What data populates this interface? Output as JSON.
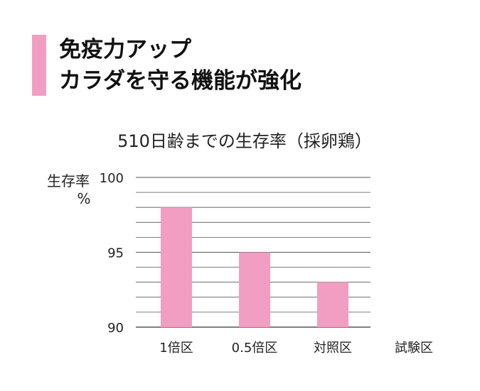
{
  "heading": {
    "accent_color": "#f19ec2",
    "line1": "免疫力アップ",
    "line2": "カラダを守る機能が強化"
  },
  "chart_data": {
    "type": "bar",
    "title": "510日齢までの生存率（採卵鶏）",
    "ylabel_line1": "生存率",
    "ylabel_line2": "%",
    "xlabel": "試験区",
    "categories": [
      "1倍区",
      "0.5倍区",
      "対照区"
    ],
    "values": [
      98,
      95,
      93
    ],
    "ylim": [
      90,
      100
    ],
    "yticks": [
      90,
      95,
      100
    ],
    "ytick_labels": [
      "90",
      "95",
      "100"
    ],
    "grid_step": 1,
    "grid": true,
    "legend": "none",
    "bar_color": "#f19ec2",
    "grid_color": "#555555"
  }
}
